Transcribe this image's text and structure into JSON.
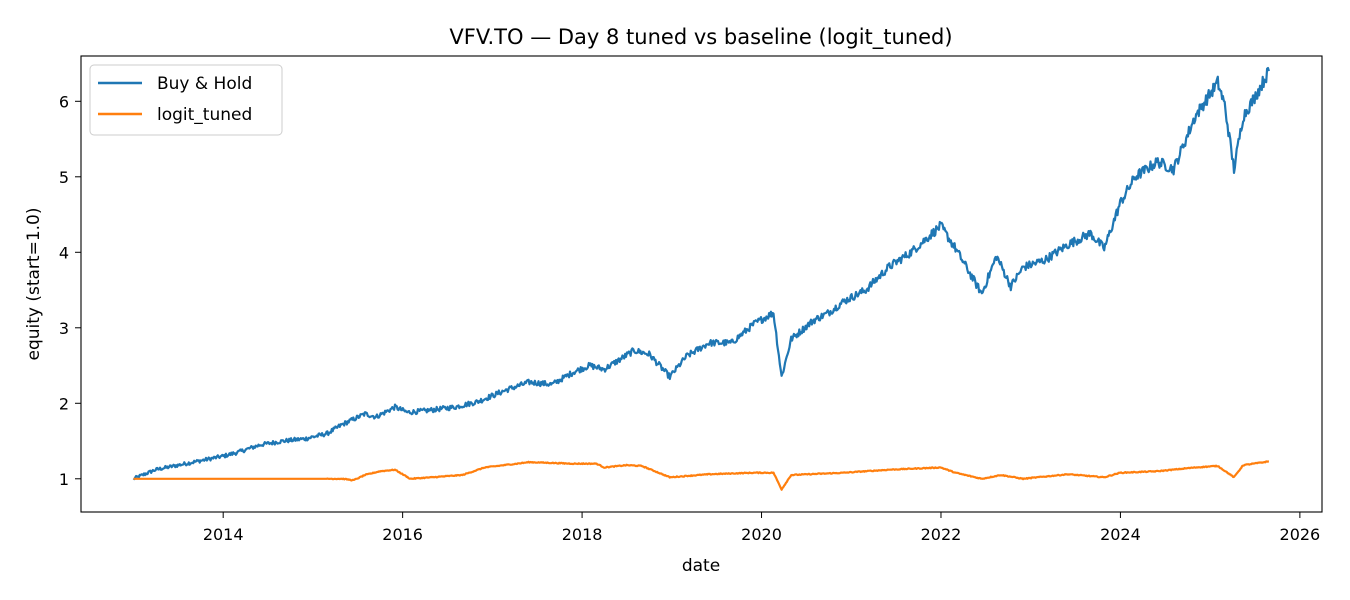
{
  "chart_data": {
    "type": "line",
    "title": "VFV.TO — Day 8 tuned vs baseline (logit_tuned)",
    "xlabel": "date",
    "ylabel": "equity (start=1.0)",
    "x_ticks": [
      "2014",
      "2016",
      "2018",
      "2020",
      "2022",
      "2024",
      "2026"
    ],
    "y_ticks": [
      "1",
      "2",
      "3",
      "4",
      "5",
      "6"
    ],
    "xlim": [
      "2012-06-01",
      "2026-04-01"
    ],
    "ylim": [
      0.56,
      6.6
    ],
    "grid": false,
    "legend_position": "top-left",
    "series": [
      {
        "name": "Buy & Hold",
        "color": "#1f77b4",
        "points": [
          [
            "2013-01-01",
            1.0
          ],
          [
            "2013-04-01",
            1.12
          ],
          [
            "2013-07-01",
            1.18
          ],
          [
            "2013-10-01",
            1.24
          ],
          [
            "2014-01-01",
            1.3
          ],
          [
            "2014-03-01",
            1.35
          ],
          [
            "2014-06-01",
            1.45
          ],
          [
            "2014-09-01",
            1.5
          ],
          [
            "2014-12-01",
            1.53
          ],
          [
            "2015-03-01",
            1.6
          ],
          [
            "2015-05-01",
            1.72
          ],
          [
            "2015-08-01",
            1.86
          ],
          [
            "2015-09-15",
            1.82
          ],
          [
            "2015-12-01",
            1.95
          ],
          [
            "2016-01-20",
            1.88
          ],
          [
            "2016-04-01",
            1.9
          ],
          [
            "2016-08-01",
            1.95
          ],
          [
            "2016-11-01",
            2.02
          ],
          [
            "2017-03-01",
            2.18
          ],
          [
            "2017-06-01",
            2.28
          ],
          [
            "2017-09-01",
            2.25
          ],
          [
            "2017-12-01",
            2.42
          ],
          [
            "2018-02-01",
            2.5
          ],
          [
            "2018-04-01",
            2.45
          ],
          [
            "2018-08-01",
            2.7
          ],
          [
            "2018-10-01",
            2.65
          ],
          [
            "2018-12-24",
            2.35
          ],
          [
            "2019-03-01",
            2.62
          ],
          [
            "2019-06-01",
            2.8
          ],
          [
            "2019-09-01",
            2.8
          ],
          [
            "2019-12-01",
            3.05
          ],
          [
            "2020-02-19",
            3.2
          ],
          [
            "2020-03-23",
            2.35
          ],
          [
            "2020-05-01",
            2.85
          ],
          [
            "2020-08-01",
            3.1
          ],
          [
            "2020-10-01",
            3.2
          ],
          [
            "2020-12-01",
            3.35
          ],
          [
            "2021-03-01",
            3.5
          ],
          [
            "2021-06-01",
            3.8
          ],
          [
            "2021-09-01",
            4.0
          ],
          [
            "2021-12-31",
            4.35
          ],
          [
            "2022-03-01",
            4.05
          ],
          [
            "2022-06-16",
            3.45
          ],
          [
            "2022-08-15",
            3.95
          ],
          [
            "2022-10-12",
            3.55
          ],
          [
            "2022-12-01",
            3.8
          ],
          [
            "2023-03-01",
            3.9
          ],
          [
            "2023-06-01",
            4.1
          ],
          [
            "2023-09-01",
            4.25
          ],
          [
            "2023-10-27",
            4.05
          ],
          [
            "2023-12-31",
            4.65
          ],
          [
            "2024-03-01",
            5.0
          ],
          [
            "2024-06-01",
            5.2
          ],
          [
            "2024-08-05",
            5.1
          ],
          [
            "2024-11-01",
            5.8
          ],
          [
            "2025-02-01",
            6.25
          ],
          [
            "2025-03-01",
            5.95
          ],
          [
            "2025-04-08",
            5.1
          ],
          [
            "2025-05-15",
            5.8
          ],
          [
            "2025-07-01",
            6.05
          ],
          [
            "2025-08-28",
            6.4
          ]
        ]
      },
      {
        "name": "logit_tuned",
        "color": "#ff7f0e",
        "points": [
          [
            "2013-01-01",
            1.0
          ],
          [
            "2015-03-01",
            1.0
          ],
          [
            "2015-05-01",
            1.0
          ],
          [
            "2015-06-15",
            0.98
          ],
          [
            "2015-08-01",
            1.05
          ],
          [
            "2015-10-01",
            1.1
          ],
          [
            "2015-12-01",
            1.12
          ],
          [
            "2016-02-01",
            1.0
          ],
          [
            "2016-05-01",
            1.02
          ],
          [
            "2016-09-01",
            1.05
          ],
          [
            "2016-12-01",
            1.15
          ],
          [
            "2017-06-01",
            1.22
          ],
          [
            "2017-12-01",
            1.2
          ],
          [
            "2018-03-01",
            1.2
          ],
          [
            "2018-04-01",
            1.15
          ],
          [
            "2018-07-01",
            1.18
          ],
          [
            "2018-09-01",
            1.17
          ],
          [
            "2018-12-24",
            1.02
          ],
          [
            "2019-06-01",
            1.06
          ],
          [
            "2019-12-01",
            1.08
          ],
          [
            "2020-02-19",
            1.08
          ],
          [
            "2020-03-23",
            0.86
          ],
          [
            "2020-05-01",
            1.05
          ],
          [
            "2020-12-01",
            1.08
          ],
          [
            "2021-06-01",
            1.12
          ],
          [
            "2021-12-31",
            1.15
          ],
          [
            "2022-03-01",
            1.08
          ],
          [
            "2022-06-16",
            1.0
          ],
          [
            "2022-09-01",
            1.05
          ],
          [
            "2022-12-01",
            1.0
          ],
          [
            "2023-06-01",
            1.06
          ],
          [
            "2023-10-27",
            1.02
          ],
          [
            "2023-12-31",
            1.08
          ],
          [
            "2024-06-01",
            1.1
          ],
          [
            "2024-11-01",
            1.15
          ],
          [
            "2025-02-01",
            1.17
          ],
          [
            "2025-04-08",
            1.02
          ],
          [
            "2025-05-15",
            1.18
          ],
          [
            "2025-08-28",
            1.23
          ]
        ]
      }
    ]
  }
}
